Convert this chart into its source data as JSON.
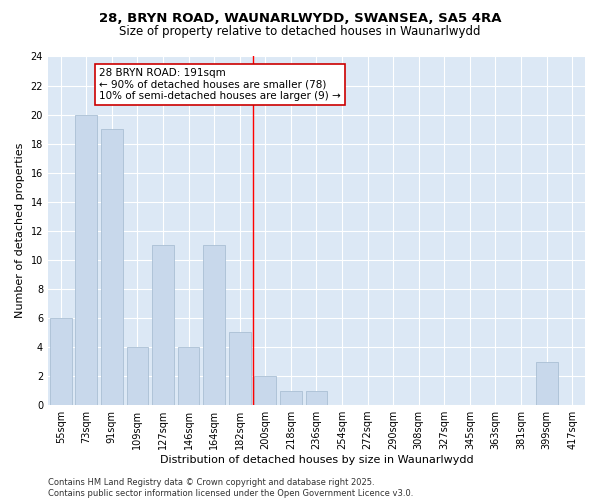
{
  "title1": "28, BRYN ROAD, WAUNARLWYDD, SWANSEA, SA5 4RA",
  "title2": "Size of property relative to detached houses in Waunarlwydd",
  "xlabel": "Distribution of detached houses by size in Waunarlwydd",
  "ylabel": "Number of detached properties",
  "categories": [
    "55sqm",
    "73sqm",
    "91sqm",
    "109sqm",
    "127sqm",
    "146sqm",
    "164sqm",
    "182sqm",
    "200sqm",
    "218sqm",
    "236sqm",
    "254sqm",
    "272sqm",
    "290sqm",
    "308sqm",
    "327sqm",
    "345sqm",
    "363sqm",
    "381sqm",
    "399sqm",
    "417sqm"
  ],
  "values": [
    6,
    20,
    19,
    4,
    11,
    4,
    11,
    5,
    2,
    1,
    1,
    0,
    0,
    0,
    0,
    0,
    0,
    0,
    0,
    3,
    0
  ],
  "bar_color": "#c8d8eb",
  "bar_edge_color": "#aabfd4",
  "reference_line_x": 7.5,
  "annotation_line1": "28 BRYN ROAD: 191sqm",
  "annotation_line2": "← 90% of detached houses are smaller (78)",
  "annotation_line3": "10% of semi-detached houses are larger (9) →",
  "annotation_box_facecolor": "#ffffff",
  "annotation_box_edgecolor": "#cc0000",
  "fig_facecolor": "#ffffff",
  "plot_facecolor": "#dce8f5",
  "grid_color": "#ffffff",
  "ylim": [
    0,
    24
  ],
  "yticks": [
    0,
    2,
    4,
    6,
    8,
    10,
    12,
    14,
    16,
    18,
    20,
    22,
    24
  ],
  "footer_text": "Contains HM Land Registry data © Crown copyright and database right 2025.\nContains public sector information licensed under the Open Government Licence v3.0.",
  "title1_fontsize": 9.5,
  "title2_fontsize": 8.5,
  "axis_label_fontsize": 8,
  "tick_fontsize": 7,
  "annotation_fontsize": 7.5,
  "footer_fontsize": 6
}
